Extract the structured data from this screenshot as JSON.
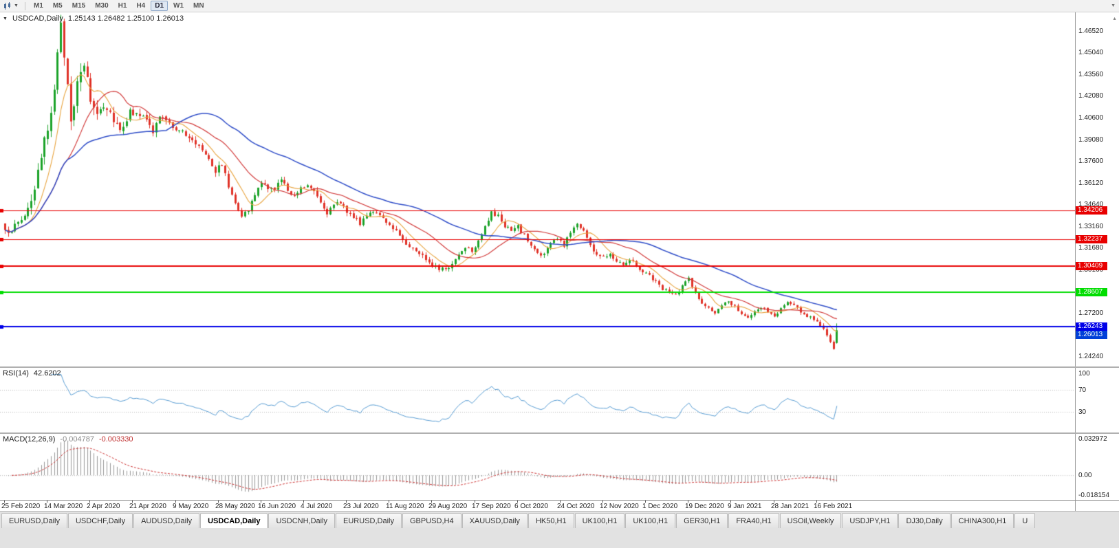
{
  "toolbar": {
    "timeframes": [
      "M1",
      "M5",
      "M15",
      "M30",
      "H1",
      "H4",
      "D1",
      "W1",
      "MN"
    ],
    "active_timeframe": "D1"
  },
  "chart": {
    "symbol_label": "USDCAD,Daily",
    "ohlc_text": "1.25143 1.26482 1.25100 1.26013",
    "price_axis_labels": [
      "1.46520",
      "1.45040",
      "1.43560",
      "1.42080",
      "1.40600",
      "1.39080",
      "1.37600",
      "1.36120",
      "1.34640",
      "1.33160",
      "1.31680",
      "1.30160",
      "1.28680",
      "1.27200",
      "1.25720",
      "1.24240"
    ],
    "hlines": [
      {
        "label": "1.34206",
        "price": 1.34206,
        "color": "#e80000",
        "thickness": 1
      },
      {
        "label": "1.32237",
        "price": 1.32237,
        "color": "#e80000",
        "thickness": 1
      },
      {
        "label": "1.30409",
        "price": 1.30409,
        "color": "#e80000",
        "thickness": 2
      },
      {
        "label": "1.28607",
        "price": 1.28607,
        "color": "#00dd00",
        "thickness": 2
      },
      {
        "label": "1.26243",
        "price": 1.26243,
        "color": "#0000e8",
        "thickness": 2
      }
    ],
    "current_price": {
      "label": "1.26013",
      "value": 1.26013,
      "color": "#0040d8"
    },
    "dates": [
      "25 Feb 2020",
      "14 Mar 2020",
      "2 Apr 2020",
      "21 Apr 2020",
      "9 May 2020",
      "28 May 2020",
      "16 Jun 2020",
      "4 Jul 2020",
      "23 Jul 2020",
      "11 Aug 2020",
      "29 Aug 2020",
      "17 Sep 2020",
      "6 Oct 2020",
      "24 Oct 2020",
      "12 Nov 2020",
      "1 Dec 2020",
      "19 Dec 2020",
      "9 Jan 2021",
      "28 Jan 2021",
      "16 Feb 2021"
    ]
  },
  "rsi": {
    "label": "RSI(14)",
    "value": "42.6202",
    "levels": [
      {
        "label": "100",
        "value": 100
      },
      {
        "label": "70",
        "value": 70
      },
      {
        "label": "30",
        "value": 30
      }
    ]
  },
  "macd": {
    "label": "MACD(12,26,9)",
    "value_main": "-0.004787",
    "value_signal": "-0.003330",
    "axis": [
      {
        "label": "0.032972",
        "value": 0.032972
      },
      {
        "label": "0.00",
        "value": 0
      },
      {
        "label": "-0.018154",
        "value": -0.018154
      }
    ]
  },
  "tabs": {
    "items": [
      "EURUSD,Daily",
      "USDCHF,Daily",
      "AUDUSD,Daily",
      "USDCAD,Daily",
      "USDCNH,Daily",
      "EURUSD,Daily",
      "GBPUSD,H4",
      "XAUUSD,Daily",
      "HK50,H1",
      "UK100,H1",
      "UK100,H1",
      "GER30,H1",
      "FRA40,H1",
      "USOil,Weekly",
      "USDJPY,H1",
      "DJ30,Daily",
      "CHINA300,H1",
      "U"
    ],
    "active_index": 3
  },
  "colors": {
    "candle_up": "#1ca32a",
    "candle_down": "#e03228",
    "ma_fast": "#e8a33d",
    "ma_mid": "#d23b3b",
    "ma_slow": "#2f4dc8",
    "rsi_line": "#569bd2",
    "macd_hist": "#999999",
    "macd_signal": "#cc3333"
  },
  "chart_data": {
    "type": "candlestick",
    "symbol": "USDCAD",
    "timeframe": "Daily",
    "visible_range": {
      "start": "25 Feb 2020",
      "end": "16 Feb 2021"
    },
    "current_bar": {
      "open": 1.25143,
      "high": 1.26482,
      "low": 1.251,
      "close": 1.26013
    },
    "price_axis_range": [
      1.2424,
      1.4652
    ],
    "render_price_top": 1.47792,
    "render_price_bottom": 1.23532,
    "num_candles": 254,
    "candle_step": 4.78,
    "left_pad": 6,
    "x_tick_interval_candles": 13,
    "horizontal_levels": [
      1.34206,
      1.32237,
      1.30409,
      1.28607,
      1.26243
    ],
    "indicators": {
      "sma_fast_period": 8,
      "sma_mid_period": 20,
      "sma_slow_period": 50,
      "rsi_period": 14,
      "rsi_last": 42.6202,
      "macd_params": [
        12,
        26,
        9
      ],
      "macd_last": -0.004787,
      "macd_signal_last": -0.00333,
      "macd_axis_range": [
        -0.018154,
        0.032972
      ]
    },
    "close_path_anchors": [
      [
        0,
        1.327
      ],
      [
        3,
        1.331
      ],
      [
        6,
        1.339
      ],
      [
        9,
        1.356
      ],
      [
        11,
        1.376
      ],
      [
        13,
        1.399
      ],
      [
        15,
        1.428
      ],
      [
        17,
        1.466
      ],
      [
        18,
        1.45
      ],
      [
        20,
        1.408
      ],
      [
        22,
        1.426
      ],
      [
        24,
        1.443
      ],
      [
        26,
        1.418
      ],
      [
        28,
        1.409
      ],
      [
        30,
        1.416
      ],
      [
        33,
        1.406
      ],
      [
        35,
        1.398
      ],
      [
        38,
        1.409
      ],
      [
        40,
        1.411
      ],
      [
        43,
        1.403
      ],
      [
        45,
        1.396
      ],
      [
        47,
        1.407
      ],
      [
        50,
        1.401
      ],
      [
        53,
        1.398
      ],
      [
        56,
        1.391
      ],
      [
        59,
        1.387
      ],
      [
        62,
        1.379
      ],
      [
        64,
        1.369
      ],
      [
        66,
        1.375
      ],
      [
        68,
        1.358
      ],
      [
        70,
        1.349
      ],
      [
        72,
        1.339
      ],
      [
        74,
        1.342
      ],
      [
        76,
        1.353
      ],
      [
        78,
        1.362
      ],
      [
        80,
        1.356
      ],
      [
        82,
        1.358
      ],
      [
        84,
        1.363
      ],
      [
        86,
        1.356
      ],
      [
        88,
        1.353
      ],
      [
        90,
        1.358
      ],
      [
        92,
        1.36
      ],
      [
        94,
        1.357
      ],
      [
        96,
        1.348
      ],
      [
        98,
        1.341
      ],
      [
        100,
        1.345
      ],
      [
        102,
        1.348
      ],
      [
        104,
        1.342
      ],
      [
        106,
        1.338
      ],
      [
        108,
        1.333
      ],
      [
        110,
        1.34
      ],
      [
        112,
        1.342
      ],
      [
        114,
        1.338
      ],
      [
        116,
        1.333
      ],
      [
        118,
        1.331
      ],
      [
        120,
        1.325
      ],
      [
        122,
        1.32
      ],
      [
        124,
        1.316
      ],
      [
        126,
        1.313
      ],
      [
        128,
        1.309
      ],
      [
        130,
        1.306
      ],
      [
        132,
        1.303
      ],
      [
        134,
        1.301
      ],
      [
        136,
        1.306
      ],
      [
        138,
        1.312
      ],
      [
        140,
        1.318
      ],
      [
        142,
        1.315
      ],
      [
        144,
        1.322
      ],
      [
        146,
        1.332
      ],
      [
        148,
        1.34
      ],
      [
        150,
        1.338
      ],
      [
        152,
        1.332
      ],
      [
        154,
        1.328
      ],
      [
        156,
        1.331
      ],
      [
        158,
        1.325
      ],
      [
        160,
        1.318
      ],
      [
        162,
        1.313
      ],
      [
        164,
        1.312
      ],
      [
        166,
        1.32
      ],
      [
        168,
        1.323
      ],
      [
        170,
        1.318
      ],
      [
        172,
        1.328
      ],
      [
        174,
        1.333
      ],
      [
        176,
        1.329
      ],
      [
        178,
        1.318
      ],
      [
        180,
        1.312
      ],
      [
        182,
        1.31
      ],
      [
        184,
        1.313
      ],
      [
        186,
        1.308
      ],
      [
        188,
        1.306
      ],
      [
        190,
        1.309
      ],
      [
        192,
        1.305
      ],
      [
        194,
        1.3
      ],
      [
        196,
        1.298
      ],
      [
        198,
        1.293
      ],
      [
        200,
        1.289
      ],
      [
        202,
        1.286
      ],
      [
        204,
        1.284
      ],
      [
        206,
        1.29
      ],
      [
        208,
        1.296
      ],
      [
        210,
        1.286
      ],
      [
        212,
        1.278
      ],
      [
        214,
        1.275
      ],
      [
        216,
        1.272
      ],
      [
        218,
        1.276
      ],
      [
        220,
        1.28
      ],
      [
        222,
        1.277
      ],
      [
        224,
        1.272
      ],
      [
        226,
        1.268
      ],
      [
        228,
        1.272
      ],
      [
        230,
        1.276
      ],
      [
        232,
        1.273
      ],
      [
        234,
        1.269
      ],
      [
        236,
        1.275
      ],
      [
        238,
        1.279
      ],
      [
        240,
        1.277
      ],
      [
        242,
        1.273
      ],
      [
        244,
        1.27
      ],
      [
        246,
        1.268
      ],
      [
        248,
        1.264
      ],
      [
        250,
        1.256
      ],
      [
        251,
        1.251
      ],
      [
        252,
        1.248
      ],
      [
        253,
        1.26013
      ]
    ],
    "volatility_anchors": [
      [
        0,
        0.005
      ],
      [
        8,
        0.0085
      ],
      [
        12,
        0.013
      ],
      [
        22,
        0.0125
      ],
      [
        30,
        0.009
      ],
      [
        45,
        0.0062
      ],
      [
        60,
        0.0052
      ],
      [
        80,
        0.0046
      ],
      [
        110,
        0.004
      ],
      [
        140,
        0.0042
      ],
      [
        170,
        0.0038
      ],
      [
        200,
        0.0035
      ],
      [
        230,
        0.003
      ],
      [
        253,
        0.003
      ]
    ]
  }
}
